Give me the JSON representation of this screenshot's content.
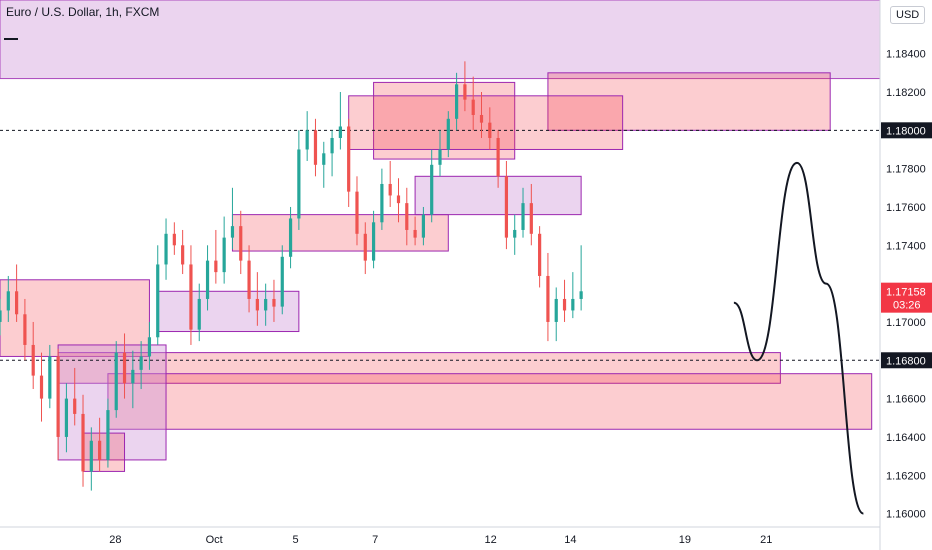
{
  "header": {
    "title": "Euro / U.S. Dollar, 1h, FXCM"
  },
  "axis_controls": {
    "currency_label": "USD"
  },
  "chart_data": {
    "type": "candlestick",
    "symbol": "Euro / U.S. Dollar",
    "timeframe": "1h",
    "exchange": "FXCM",
    "ylim": [
      1.1593,
      1.1868
    ],
    "y_ticks": [
      {
        "value": 1.184,
        "label": "1.18400"
      },
      {
        "value": 1.182,
        "label": "1.18200"
      },
      {
        "value": 1.178,
        "label": "1.17800"
      },
      {
        "value": 1.176,
        "label": "1.17600"
      },
      {
        "value": 1.174,
        "label": "1.17400"
      },
      {
        "value": 1.17,
        "label": "1.17000"
      },
      {
        "value": 1.166,
        "label": "1.16600"
      },
      {
        "value": 1.164,
        "label": "1.16400"
      },
      {
        "value": 1.162,
        "label": "1.16200"
      },
      {
        "value": 1.16,
        "label": "1.16000"
      }
    ],
    "x_ticks": [
      {
        "index": 0.39,
        "label": "28"
      },
      {
        "index": 1.58,
        "label": "Oct"
      },
      {
        "index": 2.56,
        "label": "5"
      },
      {
        "index": 3.52,
        "label": "7"
      },
      {
        "index": 4.91,
        "label": "12"
      },
      {
        "index": 5.87,
        "label": "14"
      },
      {
        "index": 7.25,
        "label": "19"
      },
      {
        "index": 8.23,
        "label": "21"
      }
    ],
    "x_range": [
      -1.0,
      9.6
    ],
    "price_levels": [
      {
        "value": 1.18,
        "label": "1.18000",
        "style": "dotted"
      },
      {
        "value": 1.168,
        "label": "1.16800",
        "style": "dotted"
      }
    ],
    "current_price": {
      "value": 1.17158,
      "label": "1.17158",
      "countdown": "03:26",
      "color": "#f23645"
    },
    "candles": [
      [
        -1.0,
        1.17,
        1.1712,
        1.1693,
        1.1706
      ],
      [
        -0.9,
        1.1706,
        1.1724,
        1.17,
        1.1716
      ],
      [
        -0.8,
        1.1716,
        1.173,
        1.17,
        1.1704
      ],
      [
        -0.7,
        1.1704,
        1.1712,
        1.168,
        1.1688
      ],
      [
        -0.6,
        1.1688,
        1.17,
        1.1665,
        1.1672
      ],
      [
        -0.5,
        1.1672,
        1.1684,
        1.1648,
        1.166
      ],
      [
        -0.4,
        1.166,
        1.1688,
        1.1655,
        1.1682
      ],
      [
        -0.3,
        1.1682,
        1.1686,
        1.1628,
        1.164
      ],
      [
        -0.2,
        1.164,
        1.1668,
        1.1632,
        1.166
      ],
      [
        -0.1,
        1.166,
        1.1676,
        1.1646,
        1.1652
      ],
      [
        0.0,
        1.1652,
        1.1662,
        1.1614,
        1.1622
      ],
      [
        0.1,
        1.1622,
        1.1645,
        1.1612,
        1.1638
      ],
      [
        0.2,
        1.1638,
        1.165,
        1.1622,
        1.1628
      ],
      [
        0.3,
        1.1628,
        1.166,
        1.1624,
        1.1654
      ],
      [
        0.4,
        1.1654,
        1.169,
        1.165,
        1.1684
      ],
      [
        0.5,
        1.1684,
        1.1694,
        1.166,
        1.1668
      ],
      [
        0.6,
        1.1668,
        1.1685,
        1.1655,
        1.1675
      ],
      [
        0.7,
        1.1675,
        1.169,
        1.1665,
        1.1682
      ],
      [
        0.8,
        1.1682,
        1.17,
        1.1675,
        1.1692
      ],
      [
        0.9,
        1.1692,
        1.174,
        1.1688,
        1.173
      ],
      [
        1.0,
        1.173,
        1.1754,
        1.1722,
        1.1746
      ],
      [
        1.1,
        1.1746,
        1.1752,
        1.1735,
        1.174
      ],
      [
        1.2,
        1.174,
        1.1748,
        1.1725,
        1.173
      ],
      [
        1.3,
        1.173,
        1.174,
        1.1688,
        1.1696
      ],
      [
        1.4,
        1.1696,
        1.172,
        1.169,
        1.1712
      ],
      [
        1.5,
        1.1712,
        1.174,
        1.1706,
        1.1732
      ],
      [
        1.6,
        1.1732,
        1.1748,
        1.172,
        1.1726
      ],
      [
        1.7,
        1.1726,
        1.1755,
        1.172,
        1.1744
      ],
      [
        1.8,
        1.1744,
        1.177,
        1.1738,
        1.175
      ],
      [
        1.9,
        1.175,
        1.1758,
        1.1725,
        1.1732
      ],
      [
        2.0,
        1.1732,
        1.174,
        1.1705,
        1.1712
      ],
      [
        2.1,
        1.1712,
        1.1726,
        1.1698,
        1.1706
      ],
      [
        2.2,
        1.1706,
        1.172,
        1.1698,
        1.1712
      ],
      [
        2.3,
        1.1712,
        1.1722,
        1.17,
        1.1708
      ],
      [
        2.4,
        1.1708,
        1.174,
        1.1704,
        1.1734
      ],
      [
        2.5,
        1.1734,
        1.176,
        1.1728,
        1.1754
      ],
      [
        2.6,
        1.1754,
        1.18,
        1.1748,
        1.179
      ],
      [
        2.7,
        1.179,
        1.181,
        1.1784,
        1.18
      ],
      [
        2.8,
        1.18,
        1.1806,
        1.1776,
        1.1782
      ],
      [
        2.9,
        1.1782,
        1.1794,
        1.177,
        1.1788
      ],
      [
        3.0,
        1.1788,
        1.18,
        1.1776,
        1.1796
      ],
      [
        3.1,
        1.1796,
        1.182,
        1.179,
        1.1802
      ],
      [
        3.2,
        1.1802,
        1.1806,
        1.176,
        1.1768
      ],
      [
        3.3,
        1.1768,
        1.1776,
        1.174,
        1.1746
      ],
      [
        3.4,
        1.1746,
        1.1752,
        1.1725,
        1.1732
      ],
      [
        3.5,
        1.1732,
        1.1758,
        1.1728,
        1.1752
      ],
      [
        3.6,
        1.1752,
        1.178,
        1.1748,
        1.1772
      ],
      [
        3.7,
        1.1772,
        1.1784,
        1.176,
        1.1766
      ],
      [
        3.8,
        1.1766,
        1.1775,
        1.1752,
        1.1762
      ],
      [
        3.9,
        1.1762,
        1.177,
        1.174,
        1.1748
      ],
      [
        4.0,
        1.1748,
        1.1755,
        1.174,
        1.1744
      ],
      [
        4.1,
        1.1744,
        1.176,
        1.174,
        1.1756
      ],
      [
        4.2,
        1.1756,
        1.179,
        1.1752,
        1.1782
      ],
      [
        4.3,
        1.1782,
        1.18,
        1.1776,
        1.179
      ],
      [
        4.4,
        1.179,
        1.181,
        1.1786,
        1.1806
      ],
      [
        4.5,
        1.1806,
        1.183,
        1.18,
        1.1824
      ],
      [
        4.6,
        1.1824,
        1.1836,
        1.181,
        1.1816
      ],
      [
        4.7,
        1.1816,
        1.1828,
        1.18,
        1.1808
      ],
      [
        4.8,
        1.1808,
        1.182,
        1.1796,
        1.1804
      ],
      [
        4.9,
        1.1804,
        1.1812,
        1.179,
        1.1796
      ],
      [
        5.0,
        1.1796,
        1.18,
        1.177,
        1.1776
      ],
      [
        5.1,
        1.1776,
        1.1784,
        1.1738,
        1.1744
      ],
      [
        5.2,
        1.1744,
        1.1756,
        1.1735,
        1.1748
      ],
      [
        5.3,
        1.1748,
        1.177,
        1.1744,
        1.1762
      ],
      [
        5.4,
        1.1762,
        1.1772,
        1.174,
        1.1746
      ],
      [
        5.5,
        1.1746,
        1.175,
        1.1718,
        1.1724
      ],
      [
        5.6,
        1.1724,
        1.1736,
        1.169,
        1.17
      ],
      [
        5.7,
        1.17,
        1.1718,
        1.169,
        1.1712
      ],
      [
        5.8,
        1.1712,
        1.1722,
        1.17,
        1.1706
      ],
      [
        5.9,
        1.1706,
        1.1726,
        1.1702,
        1.1712
      ],
      [
        6.0,
        1.1712,
        1.174,
        1.1706,
        1.1716
      ]
    ],
    "zones": [
      {
        "x0": -1.0,
        "x1": 9.6,
        "y0": 1.1868,
        "y1": 1.1827,
        "type": "supply-purple"
      },
      {
        "x0": -1.0,
        "x1": 0.8,
        "y0": 1.1722,
        "y1": 1.1682,
        "type": "supply-red"
      },
      {
        "x0": 1.8,
        "x1": 4.4,
        "y0": 1.1756,
        "y1": 1.1737,
        "type": "supply-red"
      },
      {
        "x0": 3.5,
        "x1": 5.2,
        "y0": 1.1825,
        "y1": 1.1785,
        "type": "supply-red"
      },
      {
        "x0": 5.6,
        "x1": 9.0,
        "y0": 1.183,
        "y1": 1.18,
        "type": "supply-red"
      },
      {
        "x0": 3.2,
        "x1": 6.5,
        "y0": 1.1818,
        "y1": 1.179,
        "type": "supply-red"
      },
      {
        "x0": 0.9,
        "x1": 2.6,
        "y0": 1.1716,
        "y1": 1.1695,
        "type": "demand-purple"
      },
      {
        "x0": 4.0,
        "x1": 6.0,
        "y0": 1.1776,
        "y1": 1.1756,
        "type": "demand-purple"
      },
      {
        "x0": -0.3,
        "x1": 8.4,
        "y0": 1.1684,
        "y1": 1.1668,
        "type": "demand-red"
      },
      {
        "x0": 0.3,
        "x1": 9.5,
        "y0": 1.1673,
        "y1": 1.1644,
        "type": "demand-red"
      },
      {
        "x0": -0.3,
        "x1": 1.0,
        "y0": 1.1688,
        "y1": 1.1628,
        "type": "demand-purple"
      },
      {
        "x0": 0.0,
        "x1": 0.5,
        "y0": 1.1642,
        "y1": 1.1622,
        "type": "demand-red"
      }
    ],
    "projection_path": [
      [
        7.84,
        1.171
      ],
      [
        8.12,
        1.168
      ],
      [
        8.6,
        1.1783
      ],
      [
        8.95,
        1.172
      ],
      [
        9.4,
        1.16
      ]
    ]
  }
}
